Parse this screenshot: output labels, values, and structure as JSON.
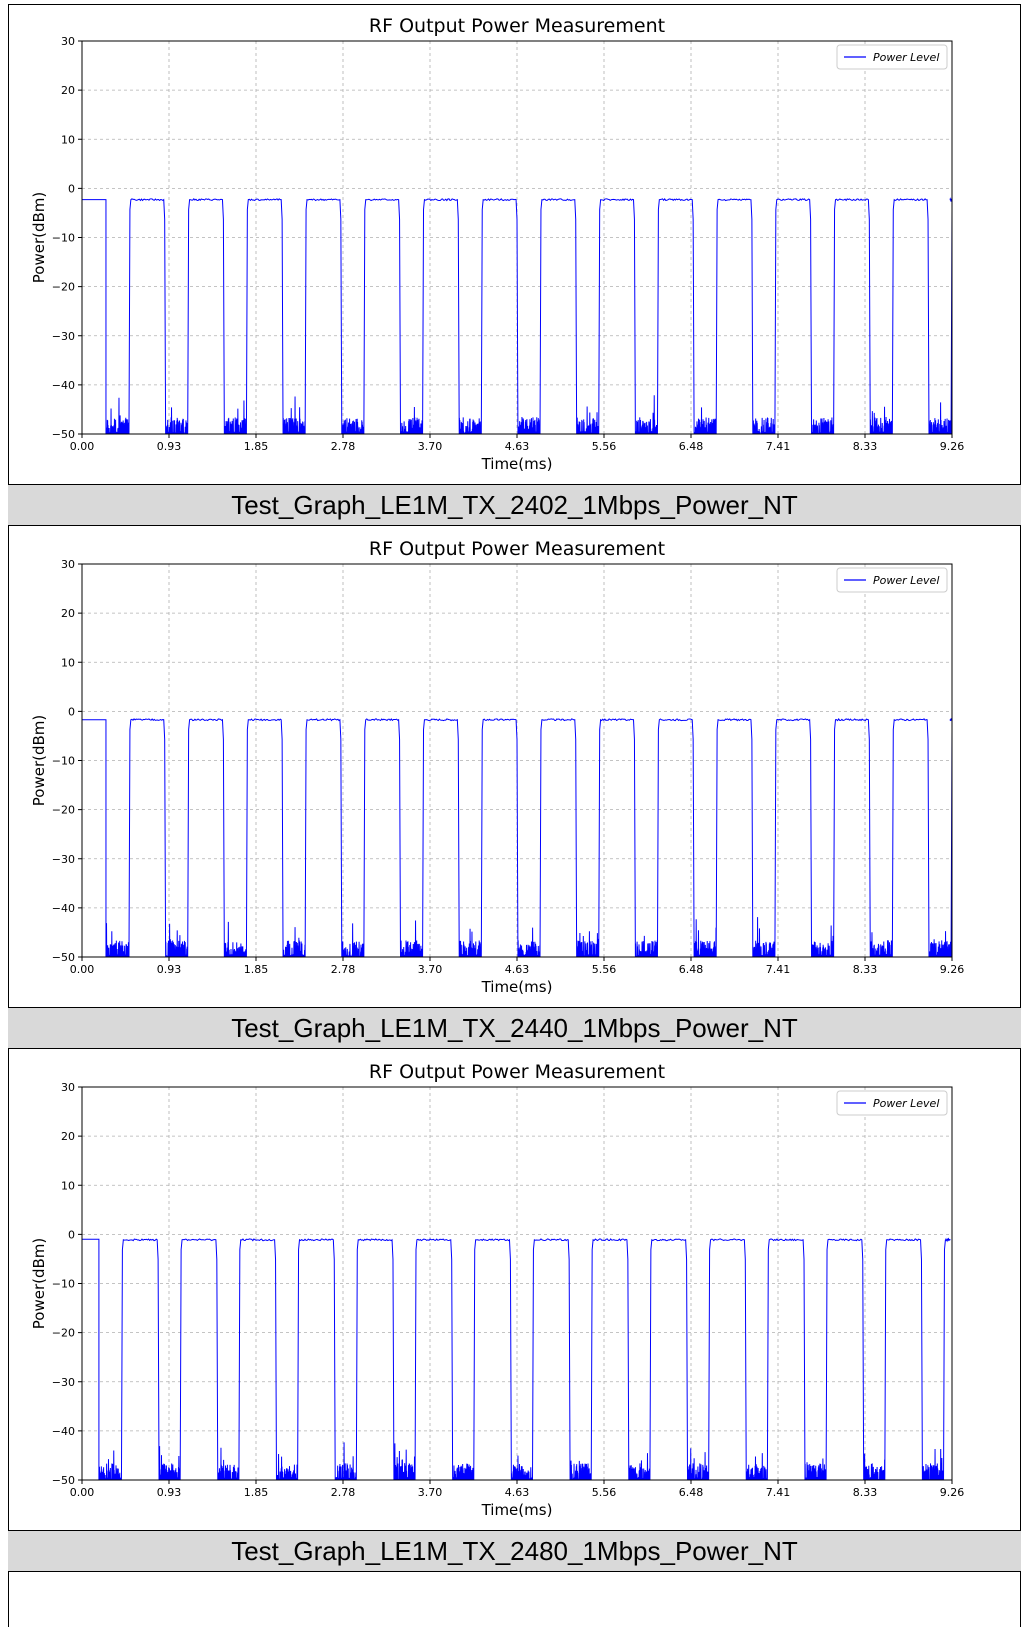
{
  "colors": {
    "line": "#0000ff",
    "grid": "#b0b0b0",
    "caption_bg": "#d9d9d9"
  },
  "chart_data": [
    {
      "type": "line",
      "title": "RF Output Power Measurement",
      "xlabel": "Time(ms)",
      "ylabel": "Power(dBm)",
      "xlim": [
        0,
        9.26
      ],
      "ylim": [
        -50,
        30
      ],
      "xticks": [
        "0.00",
        "0.93",
        "1.85",
        "2.78",
        "3.70",
        "4.63",
        "5.56",
        "6.48",
        "7.41",
        "8.33",
        "9.26"
      ],
      "yticks": [
        "30",
        "20",
        "10",
        "0",
        "−10",
        "−20",
        "−30",
        "−40",
        "−50"
      ],
      "grid": true,
      "legend_position": "top-right",
      "series": [
        {
          "name": "Power Level",
          "high_level_dbm": -2.3,
          "floor_dbm": -50,
          "burst_on_ms": 0.38,
          "burst_period_ms": 0.625,
          "first_burst_start_ms": 0.5,
          "initial_high": true
        }
      ],
      "caption": "Test_Graph_LE1M_TX_2402_1Mbps_Power_NT"
    },
    {
      "type": "line",
      "title": "RF Output Power Measurement",
      "xlabel": "Time(ms)",
      "ylabel": "Power(dBm)",
      "xlim": [
        0,
        9.26
      ],
      "ylim": [
        -50,
        30
      ],
      "xticks": [
        "0.00",
        "0.93",
        "1.85",
        "2.78",
        "3.70",
        "4.63",
        "5.56",
        "6.48",
        "7.41",
        "8.33",
        "9.26"
      ],
      "yticks": [
        "30",
        "20",
        "10",
        "0",
        "−10",
        "−20",
        "−30",
        "−40",
        "−50"
      ],
      "grid": true,
      "legend_position": "top-right",
      "series": [
        {
          "name": "Power Level",
          "high_level_dbm": -1.7,
          "floor_dbm": -50,
          "burst_on_ms": 0.38,
          "burst_period_ms": 0.625,
          "first_burst_start_ms": 0.5,
          "initial_high": true
        }
      ],
      "caption": "Test_Graph_LE1M_TX_2440_1Mbps_Power_NT"
    },
    {
      "type": "line",
      "title": "RF Output Power Measurement",
      "xlabel": "Time(ms)",
      "ylabel": "Power(dBm)",
      "xlim": [
        0,
        9.26
      ],
      "ylim": [
        -50,
        30
      ],
      "xticks": [
        "0.00",
        "0.93",
        "1.85",
        "2.78",
        "3.70",
        "4.63",
        "5.56",
        "6.48",
        "7.41",
        "8.33",
        "9.26"
      ],
      "yticks": [
        "30",
        "20",
        "10",
        "0",
        "−10",
        "−20",
        "−30",
        "−40",
        "−50"
      ],
      "grid": true,
      "legend_position": "top-right",
      "series": [
        {
          "name": "Power Level",
          "high_level_dbm": -1.1,
          "floor_dbm": -50,
          "burst_on_ms": 0.39,
          "burst_period_ms": 0.625,
          "first_burst_start_ms": 0.42,
          "initial_high": false
        }
      ],
      "caption": "Test_Graph_LE1M_TX_2480_1Mbps_Power_NT"
    }
  ]
}
